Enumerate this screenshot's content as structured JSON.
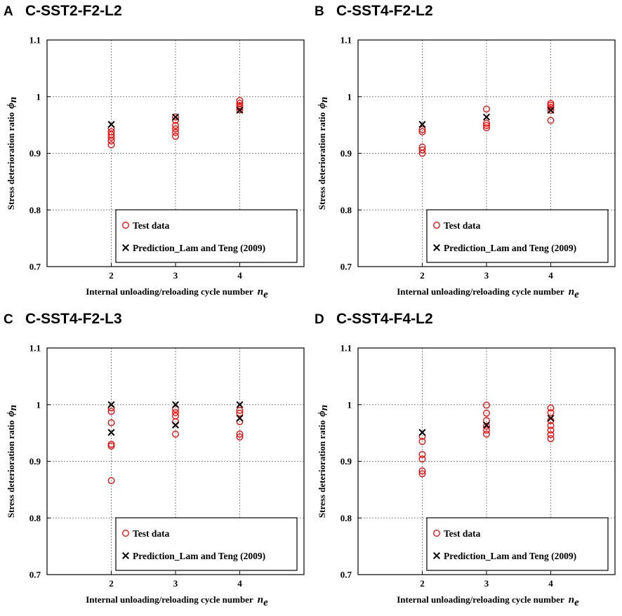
{
  "chart_data": [
    {
      "panel_letter": "A",
      "title": "C-SST2-F2-L2",
      "type": "scatter",
      "xlabel": "Internal unloading/reloading cycle number",
      "xlabel_symbol": "n",
      "xlabel_subscript": "e",
      "ylabel": "Stress deterioration ratio",
      "ylabel_symbol": "ϕ",
      "ylabel_subscript": "n",
      "xlim": [
        1,
        5
      ],
      "ylim": [
        0.7,
        1.1
      ],
      "xticks": [
        "2",
        "3",
        "4"
      ],
      "yticks": [
        "0.7",
        "0.8",
        "0.9",
        "1",
        "1.1"
      ],
      "grid": true,
      "legend_position": "bottom-left",
      "series": [
        {
          "name": "Test data",
          "marker": "circle",
          "color": "#ff0000",
          "points": [
            [
              2,
              0.915
            ],
            [
              2,
              0.922
            ],
            [
              2,
              0.928
            ],
            [
              2,
              0.933
            ],
            [
              2,
              0.938
            ],
            [
              2,
              0.944
            ],
            [
              3,
              0.93
            ],
            [
              3,
              0.937
            ],
            [
              3,
              0.943
            ],
            [
              3,
              0.949
            ],
            [
              3,
              0.958
            ],
            [
              3,
              0.964
            ],
            [
              4,
              0.977
            ],
            [
              4,
              0.981
            ],
            [
              4,
              0.984
            ],
            [
              4,
              0.988
            ],
            [
              4,
              0.993
            ]
          ]
        },
        {
          "name": "Prediction_Lam and Teng (2009)",
          "marker": "x",
          "color": "#000000",
          "points": [
            [
              2,
              0.951
            ],
            [
              3,
              0.964
            ],
            [
              4,
              0.976
            ]
          ]
        }
      ]
    },
    {
      "panel_letter": "B",
      "title": "C-SST4-F2-L2",
      "type": "scatter",
      "xlabel": "Internal unloading/reloading cycle number",
      "xlabel_symbol": "n",
      "xlabel_subscript": "e",
      "ylabel": "Stress deterioration ratio",
      "ylabel_symbol": "ϕ",
      "ylabel_subscript": "n",
      "xlim": [
        1,
        5
      ],
      "ylim": [
        0.7,
        1.1
      ],
      "xticks": [
        "2",
        "3",
        "4"
      ],
      "yticks": [
        "0.7",
        "0.8",
        "0.9",
        "1",
        "1.1"
      ],
      "grid": true,
      "legend_position": "bottom-left",
      "series": [
        {
          "name": "Test data",
          "marker": "circle",
          "color": "#ff0000",
          "points": [
            [
              2,
              0.9
            ],
            [
              2,
              0.906
            ],
            [
              2,
              0.911
            ],
            [
              2,
              0.938
            ],
            [
              2,
              0.942
            ],
            [
              3,
              0.945
            ],
            [
              3,
              0.949
            ],
            [
              3,
              0.953
            ],
            [
              3,
              0.978
            ],
            [
              4,
              0.958
            ],
            [
              4,
              0.976
            ],
            [
              4,
              0.981
            ],
            [
              4,
              0.985
            ],
            [
              4,
              0.988
            ]
          ]
        },
        {
          "name": "Prediction_Lam and Teng (2009)",
          "marker": "x",
          "color": "#000000",
          "points": [
            [
              2,
              0.951
            ],
            [
              3,
              0.964
            ],
            [
              4,
              0.976
            ]
          ]
        }
      ]
    },
    {
      "panel_letter": "C",
      "title": "C-SST4-F2-L3",
      "type": "scatter",
      "xlabel": "Internal unloading/reloading cycle number",
      "xlabel_symbol": "n",
      "xlabel_subscript": "e",
      "ylabel": "Stress deterioration ratio",
      "ylabel_symbol": "ϕ",
      "ylabel_subscript": "n",
      "xlim": [
        1,
        5
      ],
      "ylim": [
        0.7,
        1.1
      ],
      "xticks": [
        "2",
        "3",
        "4"
      ],
      "yticks": [
        "0.7",
        "0.8",
        "0.9",
        "1",
        "1.1"
      ],
      "grid": true,
      "legend_position": "bottom-left",
      "series": [
        {
          "name": "Test data",
          "marker": "circle",
          "color": "#ff0000",
          "points": [
            [
              2,
              0.866
            ],
            [
              2,
              0.927
            ],
            [
              2,
              0.93
            ],
            [
              2,
              0.968
            ],
            [
              2,
              0.988
            ],
            [
              2,
              0.994
            ],
            [
              3,
              0.948
            ],
            [
              3,
              0.97
            ],
            [
              3,
              0.98
            ],
            [
              3,
              0.986
            ],
            [
              3,
              0.992
            ],
            [
              4,
              0.943
            ],
            [
              4,
              0.948
            ],
            [
              4,
              0.97
            ],
            [
              4,
              0.985
            ],
            [
              4,
              0.99
            ]
          ]
        },
        {
          "name": "Prediction_Lam and Teng (2009)",
          "marker": "x",
          "color": "#000000",
          "points": [
            [
              2,
              1.0
            ],
            [
              2,
              0.951
            ],
            [
              3,
              1.0
            ],
            [
              3,
              0.964
            ],
            [
              4,
              1.0
            ],
            [
              4,
              0.976
            ]
          ]
        }
      ]
    },
    {
      "panel_letter": "D",
      "title": "C-SST4-F4-L2",
      "type": "scatter",
      "xlabel": "Internal unloading/reloading cycle number",
      "xlabel_symbol": "n",
      "xlabel_subscript": "e",
      "ylabel": "Stress deterioration ratio",
      "ylabel_symbol": "ϕ",
      "ylabel_subscript": "n",
      "xlim": [
        1,
        5
      ],
      "ylim": [
        0.7,
        1.1
      ],
      "xticks": [
        "2",
        "3",
        "4"
      ],
      "yticks": [
        "0.7",
        "0.8",
        "0.9",
        "1",
        "1.1"
      ],
      "grid": true,
      "legend_position": "bottom-left",
      "series": [
        {
          "name": "Test data",
          "marker": "circle",
          "color": "#ff0000",
          "points": [
            [
              2,
              0.878
            ],
            [
              2,
              0.883
            ],
            [
              2,
              0.904
            ],
            [
              2,
              0.912
            ],
            [
              2,
              0.935
            ],
            [
              2,
              0.944
            ],
            [
              3,
              0.948
            ],
            [
              3,
              0.955
            ],
            [
              3,
              0.962
            ],
            [
              3,
              0.972
            ],
            [
              3,
              0.985
            ],
            [
              3,
              0.999
            ],
            [
              4,
              0.94
            ],
            [
              4,
              0.947
            ],
            [
              4,
              0.955
            ],
            [
              4,
              0.963
            ],
            [
              4,
              0.972
            ],
            [
              4,
              0.986
            ],
            [
              4,
              0.994
            ]
          ]
        },
        {
          "name": "Prediction_Lam and Teng (2009)",
          "marker": "x",
          "color": "#000000",
          "points": [
            [
              2,
              0.951
            ],
            [
              3,
              0.964
            ],
            [
              4,
              0.976
            ]
          ]
        }
      ]
    }
  ]
}
